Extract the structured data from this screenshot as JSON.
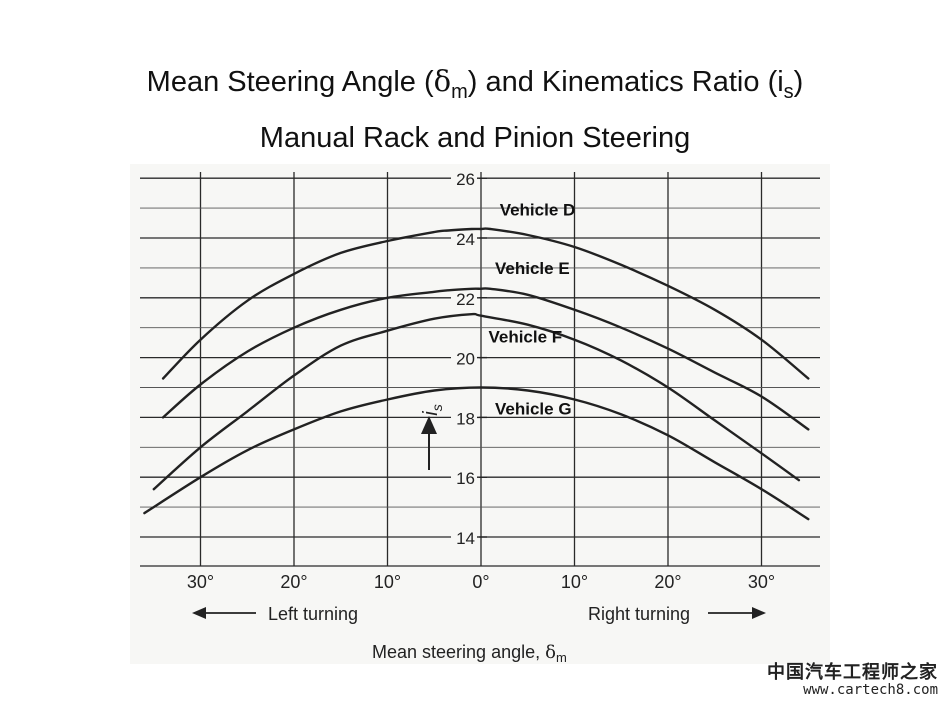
{
  "title": {
    "line1_prefix": "Mean Steering Angle (",
    "line1_delta": "δ",
    "line1_delta_sub": "m",
    "line1_middle": ") and Kinematics Ratio (i",
    "line1_is_sub": "s",
    "line1_suffix": ")",
    "line2": "Manual Rack and Pinion Steering"
  },
  "watermark": {
    "brand": "中国汽车工程师之家",
    "url": "www.cartech8.com"
  },
  "chart_data": {
    "type": "line",
    "xlabel": "Mean steering angle, δm",
    "ylabel": "is",
    "xlim": [
      -36,
      36
    ],
    "ylim": [
      13.2,
      26.2
    ],
    "x_ticks": [
      -30,
      -20,
      -10,
      0,
      10,
      20,
      30
    ],
    "x_tick_labels": [
      "30°",
      "20°",
      "10°",
      "0°",
      "10°",
      "20°",
      "30°"
    ],
    "y_ticks": [
      14,
      16,
      18,
      20,
      22,
      24,
      26
    ],
    "y_tick_labels": [
      "14",
      "16",
      "18",
      "20",
      "22",
      "24",
      "26"
    ],
    "grid": true,
    "direction_labels": {
      "left": "Left turning",
      "right": "Right turning"
    },
    "series": [
      {
        "name": "Vehicle D",
        "x": [
          -34,
          -30,
          -25,
          -20,
          -15,
          -10,
          -5,
          -3.5,
          -1,
          0,
          1,
          5,
          10,
          15,
          20,
          25,
          30,
          35
        ],
        "y": [
          19.3,
          20.6,
          21.9,
          22.8,
          23.5,
          23.9,
          24.2,
          24.25,
          24.3,
          24.3,
          24.3,
          24.1,
          23.7,
          23.1,
          22.4,
          21.6,
          20.6,
          19.3
        ]
      },
      {
        "name": "Vehicle E",
        "x": [
          -34,
          -30,
          -25,
          -20,
          -15,
          -10,
          -5,
          -3.5,
          -1,
          0,
          1,
          5,
          10,
          15,
          20,
          25,
          30,
          35
        ],
        "y": [
          18.0,
          19.1,
          20.2,
          21.0,
          21.6,
          22.0,
          22.2,
          22.25,
          22.3,
          22.3,
          22.3,
          22.1,
          21.6,
          21.0,
          20.3,
          19.5,
          18.7,
          17.6
        ]
      },
      {
        "name": "Vehicle F",
        "x": [
          -35,
          -30,
          -25,
          -20,
          -15,
          -10,
          -5,
          -1,
          0,
          5,
          10,
          15,
          20,
          25,
          30,
          34
        ],
        "y": [
          15.6,
          17.0,
          18.2,
          19.4,
          20.4,
          20.9,
          21.3,
          21.45,
          21.4,
          21.1,
          20.6,
          19.9,
          19.0,
          17.9,
          16.8,
          15.9
        ]
      },
      {
        "name": "Vehicle G",
        "x": [
          -36,
          -30,
          -25,
          -20,
          -15,
          -10,
          -5,
          0,
          5,
          10,
          15,
          20,
          25,
          30,
          35
        ],
        "y": [
          14.8,
          16.0,
          16.9,
          17.6,
          18.2,
          18.6,
          18.9,
          19.0,
          18.9,
          18.6,
          18.1,
          17.4,
          16.5,
          15.6,
          14.6
        ]
      }
    ],
    "series_labels": [
      {
        "text": "Vehicle D",
        "x": 2,
        "y": 24.75
      },
      {
        "text": "Vehicle E",
        "x": 1.5,
        "y": 22.8
      },
      {
        "text": "Vehicle F",
        "x": 0.8,
        "y": 20.5
      },
      {
        "text": "Vehicle G",
        "x": 1.5,
        "y": 18.1
      }
    ]
  }
}
